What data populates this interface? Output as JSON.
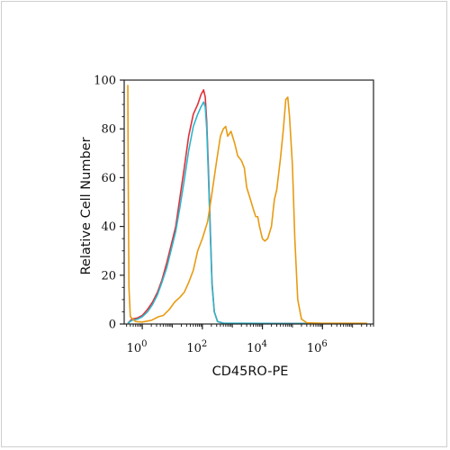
{
  "chart_data": {
    "type": "line",
    "title": "",
    "xlabel": "CD45RO-PE",
    "ylabel": "Relative Cell Number",
    "x_scale": "log",
    "xlim": [
      0.25,
      50000000
    ],
    "ylim": [
      0,
      100
    ],
    "x_ticks": [
      {
        "value": 1,
        "base": "10",
        "exp": "0"
      },
      {
        "value": 100,
        "base": "10",
        "exp": "2"
      },
      {
        "value": 10000,
        "base": "10",
        "exp": "4"
      },
      {
        "value": 1000000,
        "base": "10",
        "exp": "6"
      }
    ],
    "y_ticks": [
      0,
      20,
      40,
      60,
      80,
      100
    ],
    "grid": false,
    "legend": "none",
    "series": [
      {
        "color": "#e0303a",
        "points": [
          [
            0.33,
            0.3
          ],
          [
            0.45,
            2
          ],
          [
            0.7,
            2.5
          ],
          [
            1,
            3.5
          ],
          [
            1.5,
            6
          ],
          [
            2.2,
            9
          ],
          [
            3.2,
            13
          ],
          [
            4.5,
            18
          ],
          [
            6.5,
            25
          ],
          [
            9,
            32
          ],
          [
            13,
            40
          ],
          [
            18,
            52
          ],
          [
            25,
            64
          ],
          [
            35,
            77
          ],
          [
            50,
            86
          ],
          [
            70,
            90
          ],
          [
            90,
            94
          ],
          [
            110,
            96
          ],
          [
            125,
            93
          ],
          [
            140,
            83
          ],
          [
            160,
            63
          ],
          [
            185,
            38
          ],
          [
            210,
            17
          ],
          [
            250,
            5
          ],
          [
            320,
            1
          ],
          [
            500,
            0.3
          ],
          [
            2000,
            0.2
          ],
          [
            40000,
            0.2
          ],
          [
            30000000,
            0.2
          ]
        ]
      },
      {
        "color": "#2bb6cc",
        "points": [
          [
            0.33,
            0.3
          ],
          [
            0.45,
            1.5
          ],
          [
            0.7,
            2
          ],
          [
            1,
            3
          ],
          [
            1.5,
            5
          ],
          [
            2.2,
            8
          ],
          [
            3.2,
            12
          ],
          [
            4.5,
            17
          ],
          [
            6.5,
            23
          ],
          [
            9,
            30
          ],
          [
            13,
            38
          ],
          [
            18,
            48
          ],
          [
            25,
            59
          ],
          [
            35,
            71
          ],
          [
            50,
            81
          ],
          [
            70,
            86
          ],
          [
            90,
            89
          ],
          [
            110,
            91
          ],
          [
            125,
            89
          ],
          [
            140,
            80
          ],
          [
            160,
            60
          ],
          [
            185,
            36
          ],
          [
            210,
            16
          ],
          [
            250,
            5
          ],
          [
            320,
            1
          ],
          [
            500,
            0.3
          ],
          [
            2000,
            0.3
          ],
          [
            40000,
            0.2
          ],
          [
            30000000,
            0.2
          ]
        ]
      },
      {
        "color": "#e89b12",
        "points": [
          [
            0.33,
            98
          ],
          [
            0.34,
            60
          ],
          [
            0.36,
            15
          ],
          [
            0.4,
            3
          ],
          [
            0.6,
            1
          ],
          [
            1,
            0.8
          ],
          [
            2,
            1.5
          ],
          [
            3.5,
            3
          ],
          [
            5,
            3.5
          ],
          [
            8,
            6
          ],
          [
            12,
            9
          ],
          [
            18,
            11
          ],
          [
            25,
            13
          ],
          [
            35,
            17
          ],
          [
            50,
            22
          ],
          [
            70,
            30
          ],
          [
            100,
            35
          ],
          [
            150,
            42
          ],
          [
            200,
            52
          ],
          [
            300,
            67
          ],
          [
            400,
            77
          ],
          [
            500,
            80
          ],
          [
            600,
            81
          ],
          [
            700,
            77
          ],
          [
            900,
            79
          ],
          [
            1200,
            74
          ],
          [
            1500,
            69
          ],
          [
            2000,
            67
          ],
          [
            2500,
            64
          ],
          [
            3000,
            56
          ],
          [
            4000,
            51
          ],
          [
            5000,
            47
          ],
          [
            6000,
            44
          ],
          [
            7000,
            44
          ],
          [
            8000,
            40
          ],
          [
            10000,
            35
          ],
          [
            12000,
            34
          ],
          [
            15000,
            35
          ],
          [
            20000,
            40
          ],
          [
            25000,
            51
          ],
          [
            30000,
            55
          ],
          [
            40000,
            68
          ],
          [
            50000,
            80
          ],
          [
            60000,
            92
          ],
          [
            70000,
            93
          ],
          [
            80000,
            85
          ],
          [
            100000,
            65
          ],
          [
            120000,
            35
          ],
          [
            150000,
            10
          ],
          [
            200000,
            2
          ],
          [
            300000,
            0.5
          ],
          [
            1000000,
            0.3
          ],
          [
            30000000,
            0.3
          ]
        ]
      }
    ]
  }
}
